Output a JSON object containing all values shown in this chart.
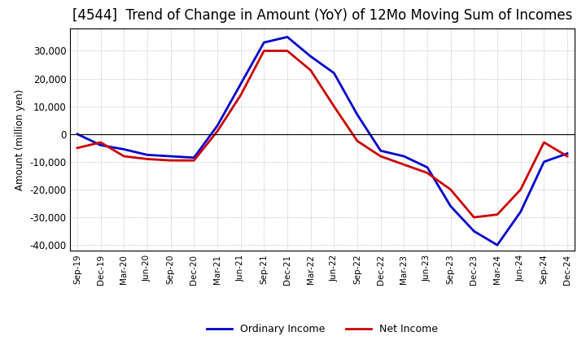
{
  "title": "[4544]  Trend of Change in Amount (YoY) of 12Mo Moving Sum of Incomes",
  "ylabel": "Amount (million yen)",
  "x_labels": [
    "Sep-19",
    "Dec-19",
    "Mar-20",
    "Jun-20",
    "Sep-20",
    "Dec-20",
    "Mar-21",
    "Jun-21",
    "Sep-21",
    "Dec-21",
    "Mar-22",
    "Jun-22",
    "Sep-22",
    "Dec-22",
    "Mar-23",
    "Jun-23",
    "Sep-23",
    "Dec-23",
    "Mar-24",
    "Jun-24",
    "Sep-24",
    "Dec-24"
  ],
  "ordinary_income": [
    0,
    -4000,
    -5500,
    -7500,
    -8000,
    -8500,
    3000,
    18000,
    33000,
    35000,
    28000,
    22000,
    7000,
    -6000,
    -8000,
    -12000,
    -26000,
    -35000,
    -40000,
    -28000,
    -10000,
    -7000
  ],
  "net_income": [
    -5000,
    -3000,
    -8000,
    -9000,
    -9500,
    -9500,
    1000,
    14000,
    30000,
    30000,
    23000,
    10000,
    -2500,
    -8000,
    -11000,
    -14000,
    -20000,
    -30000,
    -29000,
    -20000,
    -3000,
    -8000
  ],
  "ordinary_color": "#0000cc",
  "net_color": "#cc0000",
  "ylim": [
    -42000,
    38000
  ],
  "yticks": [
    -40000,
    -30000,
    -20000,
    -10000,
    0,
    10000,
    20000,
    30000
  ],
  "background_color": "#ffffff",
  "grid_color": "#aaaaaa",
  "title_fontsize": 12,
  "legend_labels": [
    "Ordinary Income",
    "Net Income"
  ]
}
